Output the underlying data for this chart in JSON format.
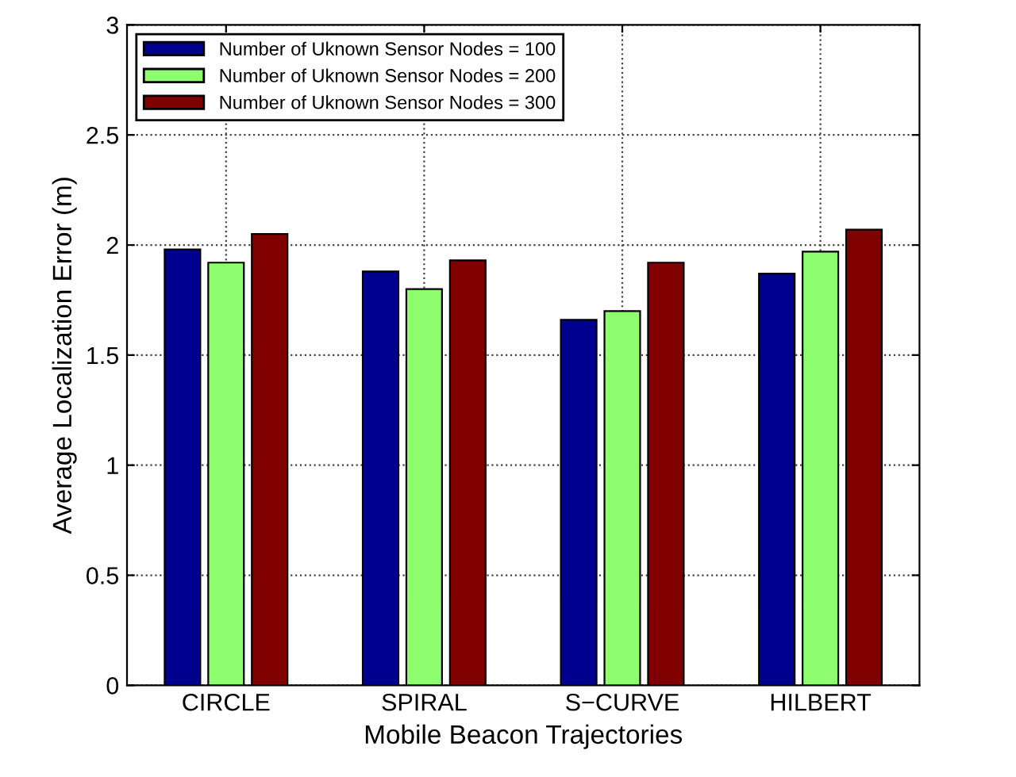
{
  "chart_data": {
    "type": "bar",
    "xlabel": "Mobile Beacon Trajectories",
    "ylabel": "Average Localization Error (m)",
    "categories": [
      "CIRCLE",
      "SPIRAL",
      "S−CURVE",
      "HILBERT"
    ],
    "series": [
      {
        "name": "Number of Uknown Sensor Nodes = 100",
        "color": "#00008f",
        "values": [
          1.98,
          1.88,
          1.66,
          1.87
        ]
      },
      {
        "name": "Number of Uknown Sensor Nodes = 200",
        "color": "#8fff70",
        "values": [
          1.92,
          1.8,
          1.7,
          1.97
        ]
      },
      {
        "name": "Number of Uknown Sensor Nodes = 300",
        "color": "#800000",
        "values": [
          2.05,
          1.93,
          1.92,
          2.07
        ]
      }
    ],
    "ylim": [
      0,
      3
    ],
    "yticks": [
      0,
      0.5,
      1,
      1.5,
      2,
      2.5,
      3
    ],
    "grid": true,
    "legend": "top left"
  }
}
